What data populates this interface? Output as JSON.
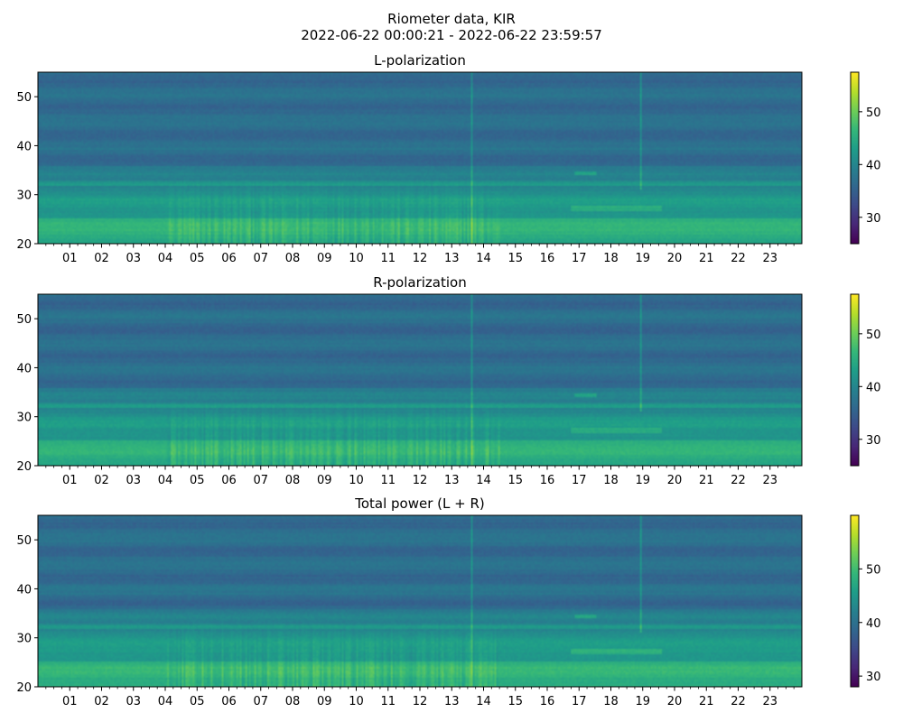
{
  "figure": {
    "title_line1": "Riometer data, KIR",
    "title_line2": "2022-06-22 00:00:21 - 2022-06-22 23:59:57",
    "colormap": "viridis"
  },
  "chart_data": [
    {
      "type": "heatmap",
      "title": "L-polarization",
      "xlabel": "",
      "ylabel": "",
      "ylim": [
        20,
        55
      ],
      "xlim": [
        0,
        24
      ],
      "yticks": [
        20,
        30,
        40,
        50
      ],
      "xtick_labels": [
        "01",
        "02",
        "03",
        "04",
        "05",
        "06",
        "07",
        "08",
        "09",
        "10",
        "11",
        "12",
        "13",
        "14",
        "15",
        "16",
        "17",
        "18",
        "19",
        "20",
        "21",
        "22",
        "23"
      ],
      "colorbar": {
        "ticks": [
          30,
          40,
          50
        ],
        "vmin": 25,
        "vmax": 57.5
      }
    },
    {
      "type": "heatmap",
      "title": "R-polarization",
      "xlabel": "",
      "ylabel": "",
      "ylim": [
        20,
        55
      ],
      "xlim": [
        0,
        24
      ],
      "yticks": [
        20,
        30,
        40,
        50
      ],
      "xtick_labels": [
        "01",
        "02",
        "03",
        "04",
        "05",
        "06",
        "07",
        "08",
        "09",
        "10",
        "11",
        "12",
        "13",
        "14",
        "15",
        "16",
        "17",
        "18",
        "19",
        "20",
        "21",
        "22",
        "23"
      ],
      "colorbar": {
        "ticks": [
          30,
          40,
          50
        ],
        "vmin": 25,
        "vmax": 57.5
      }
    },
    {
      "type": "heatmap",
      "title": "Total power (L + R)",
      "xlabel": "",
      "ylabel": "",
      "ylim": [
        20,
        55
      ],
      "xlim": [
        0,
        24
      ],
      "yticks": [
        20,
        30,
        40,
        50
      ],
      "xtick_labels": [
        "01",
        "02",
        "03",
        "04",
        "05",
        "06",
        "07",
        "08",
        "09",
        "10",
        "11",
        "12",
        "13",
        "14",
        "15",
        "16",
        "17",
        "18",
        "19",
        "20",
        "21",
        "22",
        "23"
      ],
      "colorbar": {
        "ticks": [
          30,
          40,
          50
        ],
        "vmin": 28,
        "vmax": 60
      }
    }
  ]
}
